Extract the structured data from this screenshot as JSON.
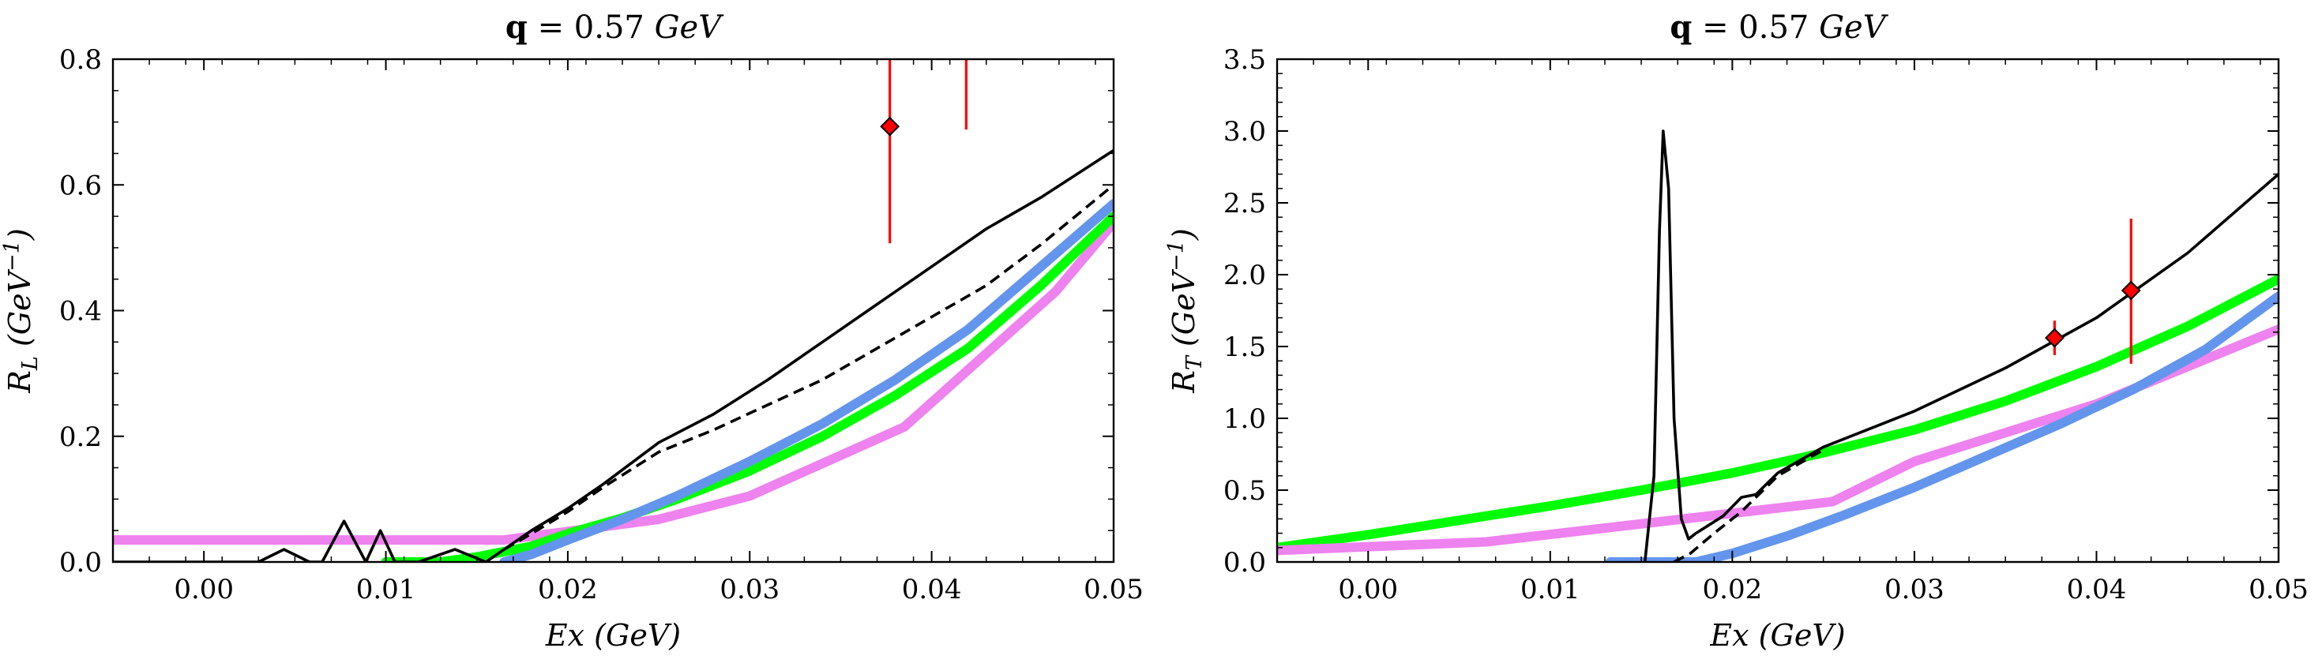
{
  "chart_data": [
    {
      "type": "line",
      "title": "q = 0.57 GeV",
      "xlabel": "Ex (GeV)",
      "ylabel": "R_L (GeV^-1)",
      "xlim": [
        -0.005,
        0.05
      ],
      "ylim": [
        0,
        0.8
      ],
      "xticks": [
        0.0,
        0.01,
        0.02,
        0.03,
        0.04,
        0.05
      ],
      "xtick_labels": [
        "0.00",
        "0.01",
        "0.02",
        "0.03",
        "0.04",
        "0.05"
      ],
      "yticks": [
        0.0,
        0.2,
        0.4,
        0.6,
        0.8
      ],
      "ytick_labels": [
        "0.0",
        "0.2",
        "0.4",
        "0.6",
        "0.8"
      ],
      "series": [
        {
          "color": "#ee82ee",
          "style": "thick",
          "x": [
            -0.005,
            0.0165,
            0.025,
            0.03,
            0.0385,
            0.0468,
            0.05
          ],
          "y": [
            0.035,
            0.035,
            0.068,
            0.105,
            0.215,
            0.43,
            0.54
          ]
        },
        {
          "color": "#00ff00",
          "style": "thick",
          "x": [
            0.01,
            0.013,
            0.015,
            0.018,
            0.02,
            0.023,
            0.026,
            0.03,
            0.034,
            0.038,
            0.042,
            0.046,
            0.05
          ],
          "y": [
            0.0,
            0.0,
            0.008,
            0.025,
            0.045,
            0.07,
            0.1,
            0.145,
            0.2,
            0.265,
            0.34,
            0.44,
            0.55
          ]
        },
        {
          "color": "#6495ed",
          "style": "thick",
          "x": [
            0.0165,
            0.018,
            0.02,
            0.023,
            0.026,
            0.03,
            0.034,
            0.038,
            0.042,
            0.046,
            0.05
          ],
          "y": [
            0.0,
            0.012,
            0.035,
            0.068,
            0.105,
            0.16,
            0.22,
            0.29,
            0.37,
            0.47,
            0.57
          ]
        },
        {
          "color": "#000000",
          "style": "solid",
          "x": [
            -0.005,
            0.003,
            0.0044,
            0.0058,
            0.0065,
            0.0077,
            0.0089,
            0.0097,
            0.0105,
            0.0118,
            0.0138,
            0.0155,
            0.0165,
            0.018,
            0.02,
            0.022,
            0.025,
            0.028,
            0.031,
            0.034,
            0.037,
            0.04,
            0.043,
            0.046,
            0.05
          ],
          "y": [
            0.0,
            0.0,
            0.02,
            0.0,
            0.0,
            0.065,
            0.0,
            0.05,
            0.0,
            0.0,
            0.02,
            0.0,
            0.02,
            0.05,
            0.085,
            0.125,
            0.19,
            0.235,
            0.29,
            0.35,
            0.41,
            0.47,
            0.53,
            0.58,
            0.655
          ]
        },
        {
          "color": "#000000",
          "style": "dashed",
          "x": [
            0.0165,
            0.018,
            0.02,
            0.022,
            0.025,
            0.028,
            0.031,
            0.034,
            0.037,
            0.04,
            0.043,
            0.046,
            0.05
          ],
          "y": [
            0.02,
            0.045,
            0.08,
            0.12,
            0.175,
            0.21,
            0.25,
            0.29,
            0.34,
            0.39,
            0.44,
            0.505,
            0.6
          ]
        }
      ],
      "data_points": [
        {
          "x": 0.0377,
          "y": 0.693,
          "yerr_low": 0.507,
          "yerr_high": 0.8
        },
        {
          "x": 0.0419,
          "y": null,
          "yerr_low": 0.688,
          "yerr_high": 0.8
        }
      ]
    },
    {
      "type": "line",
      "title": "q = 0.57 GeV",
      "xlabel": "Ex (GeV)",
      "ylabel": "R_T (GeV^-1)",
      "xlim": [
        -0.005,
        0.05
      ],
      "ylim": [
        0,
        3.5
      ],
      "xticks": [
        0.0,
        0.01,
        0.02,
        0.03,
        0.04,
        0.05
      ],
      "xtick_labels": [
        "0.00",
        "0.01",
        "0.02",
        "0.03",
        "0.04",
        "0.05"
      ],
      "yticks": [
        0.0,
        0.5,
        1.0,
        1.5,
        2.0,
        2.5,
        3.0,
        3.5
      ],
      "ytick_labels": [
        "0.0",
        "0.5",
        "1.0",
        "1.5",
        "2.0",
        "2.5",
        "3.0",
        "3.5"
      ],
      "series": [
        {
          "color": "#00ff00",
          "style": "thick",
          "x": [
            -0.005,
            0.0,
            0.005,
            0.01,
            0.015,
            0.02,
            0.025,
            0.03,
            0.035,
            0.04,
            0.045,
            0.05
          ],
          "y": [
            0.1,
            0.19,
            0.29,
            0.39,
            0.5,
            0.62,
            0.76,
            0.92,
            1.12,
            1.36,
            1.64,
            1.97
          ]
        },
        {
          "color": "#ee82ee",
          "style": "thick",
          "x": [
            -0.005,
            0.0065,
            0.0255,
            0.03,
            0.04,
            0.05
          ],
          "y": [
            0.08,
            0.14,
            0.42,
            0.7,
            1.1,
            1.62
          ]
        },
        {
          "color": "#6495ed",
          "style": "thick",
          "x": [
            0.0133,
            0.016,
            0.018,
            0.02,
            0.023,
            0.026,
            0.03,
            0.034,
            0.038,
            0.042,
            0.046,
            0.05
          ],
          "y": [
            0.0,
            0.0,
            0.0,
            0.06,
            0.18,
            0.32,
            0.52,
            0.74,
            0.96,
            1.2,
            1.48,
            1.85
          ]
        },
        {
          "color": "#000000",
          "style": "solid",
          "x": [
            0.0152,
            0.0157,
            0.016,
            0.0162,
            0.0165,
            0.0168,
            0.0172,
            0.0176,
            0.018,
            0.0195,
            0.0205,
            0.0213,
            0.0225,
            0.025,
            0.03,
            0.035,
            0.04,
            0.045,
            0.05
          ],
          "y": [
            0.0,
            0.6,
            2.3,
            3.0,
            2.6,
            1.0,
            0.3,
            0.16,
            0.2,
            0.32,
            0.45,
            0.47,
            0.62,
            0.8,
            1.05,
            1.35,
            1.7,
            2.15,
            2.7
          ]
        },
        {
          "color": "#000000",
          "style": "dashed",
          "x": [
            0.0168,
            0.0177,
            0.019,
            0.0205,
            0.0225,
            0.025
          ],
          "y": [
            0.0,
            0.06,
            0.2,
            0.35,
            0.6,
            0.78
          ]
        }
      ],
      "data_points": [
        {
          "x": 0.0377,
          "y": 1.56,
          "yerr_low": 1.44,
          "yerr_high": 1.68
        },
        {
          "x": 0.0419,
          "y": 1.89,
          "yerr_low": 1.38,
          "yerr_high": 2.39
        }
      ]
    }
  ]
}
